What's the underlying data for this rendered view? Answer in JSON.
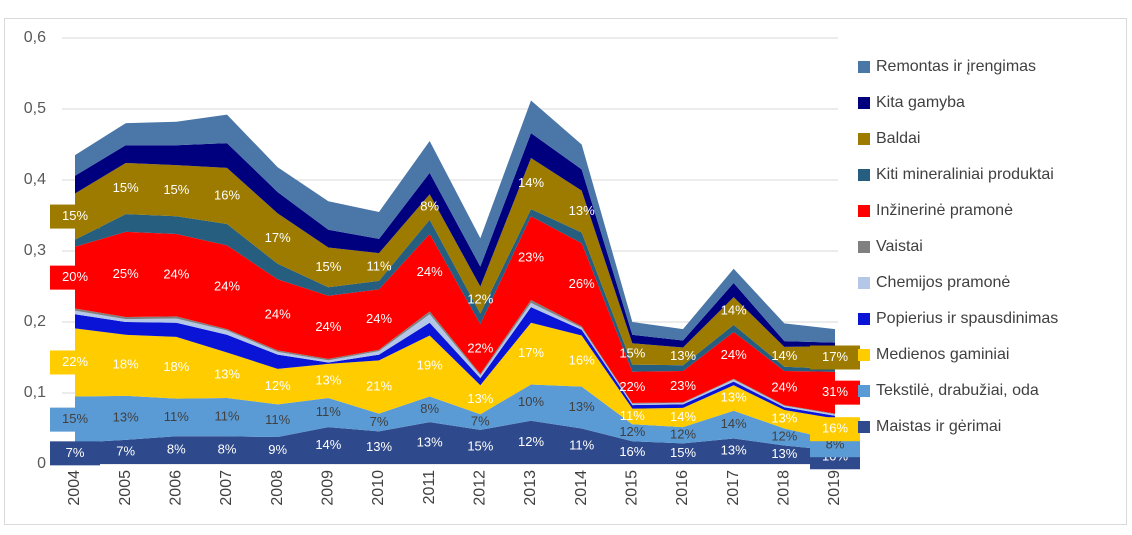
{
  "chart_data": {
    "type": "stacked_area",
    "categories": [
      "2004",
      "2005",
      "2006",
      "2007",
      "2008",
      "2009",
      "2010",
      "2011",
      "2012",
      "2013",
      "2014",
      "2015",
      "2016",
      "2017",
      "2018",
      "2019"
    ],
    "ylim": [
      0,
      0.6
    ],
    "yticks": [
      {
        "value": 0,
        "label": "0"
      },
      {
        "value": 0.1,
        "label": "0,1"
      },
      {
        "value": 0.2,
        "label": "0,2"
      },
      {
        "value": 0.3,
        "label": "0,3"
      },
      {
        "value": 0.4,
        "label": "0,4"
      },
      {
        "value": 0.5,
        "label": "0,5"
      },
      {
        "value": 0.6,
        "label": "0,6"
      }
    ],
    "grid": true,
    "legend": "right",
    "series": [
      {
        "name": "Maistas ir gėrimai",
        "color": "#2e4a8c",
        "label_color": "#ffffff",
        "values": [
          0.03,
          0.034,
          0.039,
          0.039,
          0.038,
          0.052,
          0.046,
          0.059,
          0.048,
          0.061,
          0.05,
          0.032,
          0.029,
          0.036,
          0.026,
          0.019
        ],
        "labels": [
          "7%",
          "7%",
          "8%",
          "8%",
          "9%",
          "14%",
          "13%",
          "13%",
          "15%",
          "12%",
          "11%",
          "16%",
          "15%",
          "13%",
          "13%",
          "10%"
        ]
      },
      {
        "name": "Tekstilė, drabužiai, oda",
        "color": "#5b9bd5",
        "label_color": "#404040",
        "values": [
          0.065,
          0.062,
          0.053,
          0.054,
          0.046,
          0.041,
          0.025,
          0.036,
          0.022,
          0.051,
          0.059,
          0.024,
          0.023,
          0.039,
          0.024,
          0.015
        ],
        "labels": [
          "15%",
          "13%",
          "11%",
          "11%",
          "11%",
          "11%",
          "7%",
          "8%",
          "7%",
          "10%",
          "13%",
          "12%",
          "12%",
          "14%",
          "12%",
          "8%"
        ]
      },
      {
        "name": "Medienos gaminiai",
        "color": "#ffcc00",
        "label_color": "#ffffff",
        "values": [
          0.096,
          0.086,
          0.087,
          0.064,
          0.05,
          0.048,
          0.075,
          0.086,
          0.041,
          0.087,
          0.072,
          0.022,
          0.027,
          0.036,
          0.026,
          0.03
        ],
        "labels": [
          "22%",
          "18%",
          "18%",
          "13%",
          "12%",
          "13%",
          "21%",
          "19%",
          "13%",
          "17%",
          "16%",
          "11%",
          "14%",
          "13%",
          "13%",
          "16%"
        ]
      },
      {
        "name": "Popierius ir spausdinimas",
        "color": "#0a14d6",
        "values": [
          0.02,
          0.018,
          0.02,
          0.025,
          0.02,
          0.002,
          0.008,
          0.018,
          0.01,
          0.022,
          0.008,
          0.005,
          0.005,
          0.005,
          0.004,
          0.004
        ]
      },
      {
        "name": "Chemijos pramonė",
        "color": "#b4c7e7",
        "values": [
          0.005,
          0.004,
          0.006,
          0.006,
          0.004,
          0.003,
          0.005,
          0.012,
          0.004,
          0.006,
          0.003,
          0.002,
          0.002,
          0.003,
          0.002,
          0.002
        ]
      },
      {
        "name": "Vaistai",
        "color": "#808080",
        "values": [
          0.003,
          0.003,
          0.003,
          0.002,
          0.002,
          0.002,
          0.002,
          0.004,
          0.002,
          0.004,
          0.002,
          0.001,
          0.001,
          0.001,
          0.001,
          0.001
        ]
      },
      {
        "name": "Inžinerinė pramonė",
        "color": "#ff0000",
        "label_color": "#ffffff",
        "values": [
          0.087,
          0.12,
          0.116,
          0.118,
          0.1,
          0.089,
          0.085,
          0.109,
          0.07,
          0.118,
          0.117,
          0.044,
          0.044,
          0.066,
          0.048,
          0.059
        ],
        "labels": [
          "20%",
          "25%",
          "24%",
          "24%",
          "24%",
          "24%",
          "24%",
          "24%",
          "22%",
          "23%",
          "26%",
          "22%",
          "23%",
          "24%",
          "24%",
          "31%"
        ]
      },
      {
        "name": "Kiti mineraliniai produktai",
        "color": "#255e7e",
        "values": [
          0.01,
          0.025,
          0.025,
          0.03,
          0.022,
          0.012,
          0.012,
          0.02,
          0.015,
          0.01,
          0.015,
          0.01,
          0.008,
          0.01,
          0.006,
          0.004
        ]
      },
      {
        "name": "Baldai",
        "color": "#9c7b00",
        "label_color": "#ffffff",
        "values": [
          0.065,
          0.072,
          0.072,
          0.079,
          0.071,
          0.056,
          0.039,
          0.036,
          0.038,
          0.072,
          0.059,
          0.03,
          0.025,
          0.039,
          0.028,
          0.032
        ],
        "labels": [
          "15%",
          "15%",
          "15%",
          "16%",
          "17%",
          "15%",
          "11%",
          "8%",
          "12%",
          "14%",
          "13%",
          "15%",
          "13%",
          "14%",
          "14%",
          "17%"
        ]
      },
      {
        "name": "Kita gamyba",
        "color": "#00007f",
        "values": [
          0.025,
          0.025,
          0.028,
          0.035,
          0.03,
          0.025,
          0.02,
          0.03,
          0.028,
          0.035,
          0.03,
          0.012,
          0.01,
          0.02,
          0.008,
          0.005
        ]
      },
      {
        "name": "Remontas ir įrengimas",
        "color": "#4a76a8",
        "values": [
          0.029,
          0.031,
          0.033,
          0.04,
          0.035,
          0.04,
          0.038,
          0.045,
          0.04,
          0.046,
          0.035,
          0.018,
          0.016,
          0.02,
          0.025,
          0.019
        ]
      }
    ]
  }
}
